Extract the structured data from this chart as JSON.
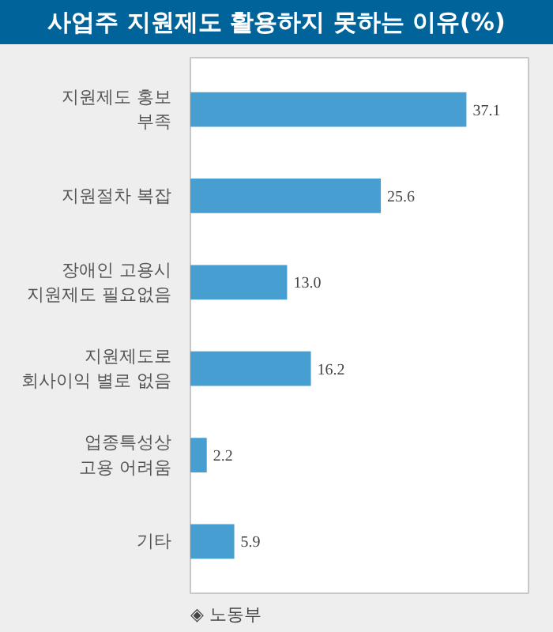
{
  "chart_data": {
    "type": "bar",
    "orientation": "horizontal",
    "title": "사업주 지원제도 활용하지 못하는 이유(%)",
    "categories": [
      "지원제도 홍보\n부족",
      "지원절차 복잡",
      "장애인 고용시\n지원제도 필요없음",
      "지원제도로\n회사이익 별로 없음",
      "업종특성상\n고용 어려움",
      "기타"
    ],
    "values": [
      37.1,
      25.6,
      13.0,
      16.2,
      2.2,
      5.9
    ],
    "value_labels": [
      "37.1",
      "25.6",
      "13.0",
      "16.2",
      "2.2",
      "5.9"
    ],
    "color": "#469fd0",
    "annotations": [
      "◈ 노동부"
    ],
    "grid": false
  }
}
